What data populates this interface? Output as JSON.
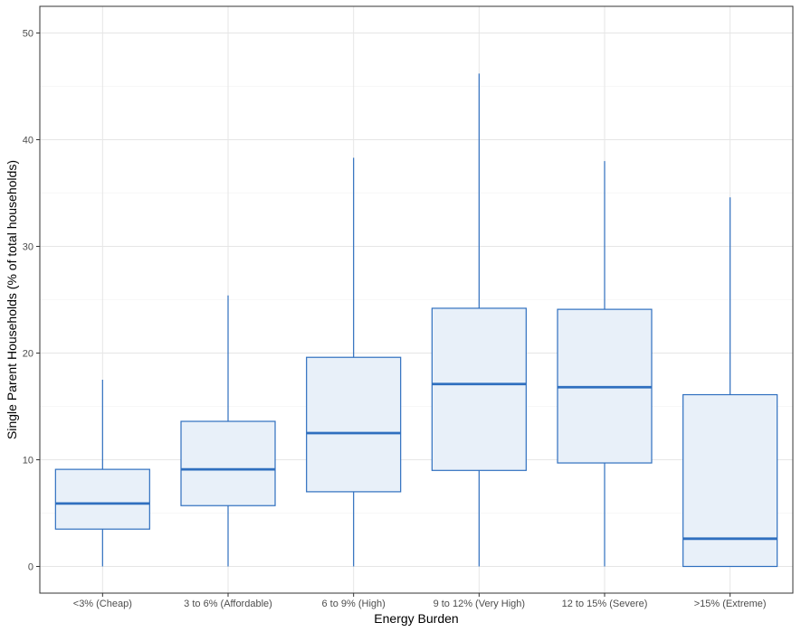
{
  "chart_data": {
    "type": "boxplot",
    "xlabel": "Energy Burden",
    "ylabel": "Single Parent Households (% of total households)",
    "ylim": [
      -2.5,
      52.5
    ],
    "yticks": [
      0,
      10,
      20,
      30,
      40,
      50
    ],
    "grid": true,
    "box_color": "#2f6fbf",
    "box_fill": "#e8f0f9",
    "categories": [
      "<3% (Cheap)",
      "3 to 6% (Affordable)",
      "6 to 9% (High)",
      "9 to 12% (Very High)",
      "12 to 15% (Severe)",
      ">15% (Extreme)"
    ],
    "boxes": [
      {
        "min": 0,
        "q1": 3.5,
        "median": 5.9,
        "q3": 9.1,
        "max": 17.5
      },
      {
        "min": 0,
        "q1": 5.7,
        "median": 9.1,
        "q3": 13.6,
        "max": 25.4
      },
      {
        "min": 0,
        "q1": 7.0,
        "median": 12.5,
        "q3": 19.6,
        "max": 38.3
      },
      {
        "min": 0,
        "q1": 9.0,
        "median": 17.1,
        "q3": 24.2,
        "max": 46.2
      },
      {
        "min": 0,
        "q1": 9.7,
        "median": 16.8,
        "q3": 24.1,
        "max": 38.0
      },
      {
        "min": 0,
        "q1": 0.0,
        "median": 2.6,
        "q3": 16.1,
        "max": 34.6
      }
    ]
  }
}
